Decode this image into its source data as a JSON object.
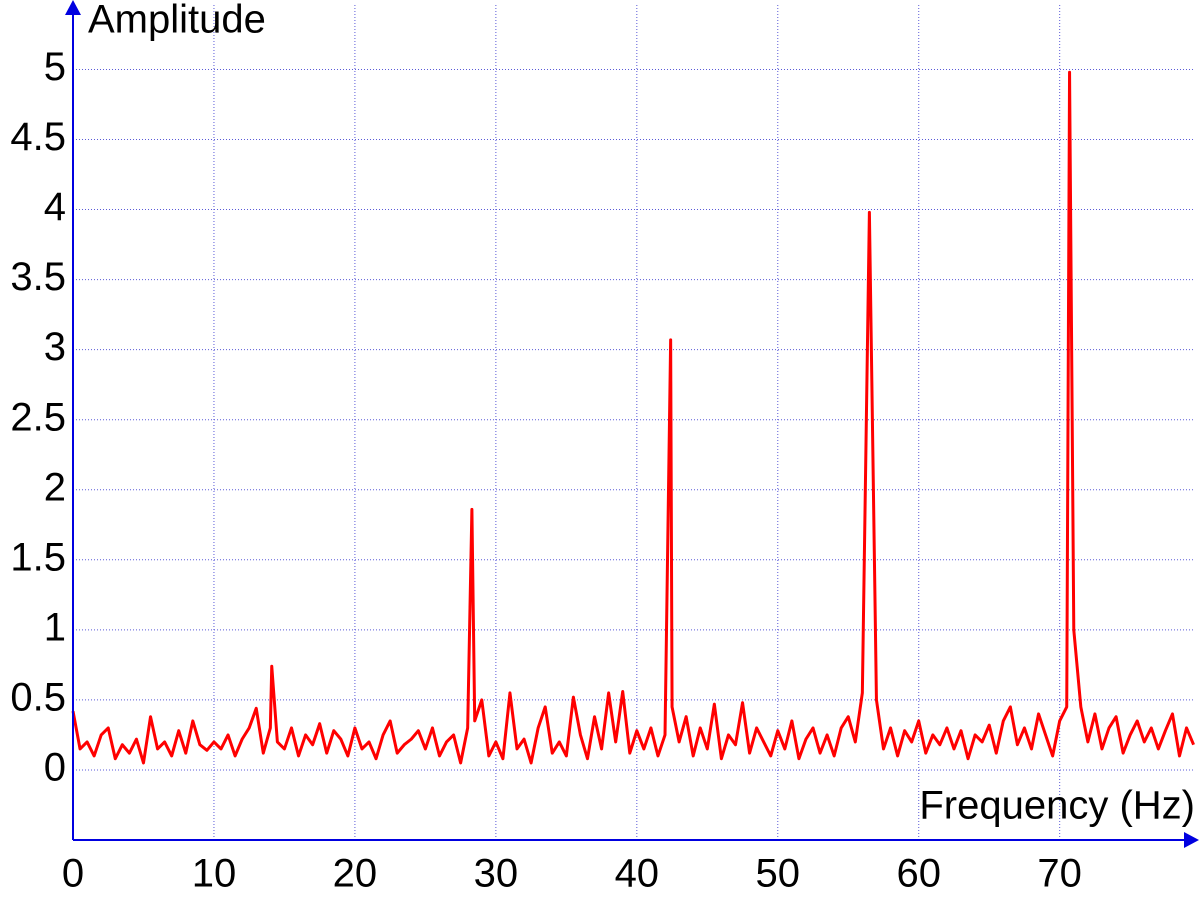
{
  "chart_data": {
    "type": "line",
    "y_label": "Amplitude",
    "x_label": "Frequency (Hz)",
    "xlim": [
      0,
      79.6
    ],
    "ylim": [
      -0.5,
      5.46
    ],
    "xticks": [
      0,
      10,
      20,
      30,
      40,
      50,
      60,
      70
    ],
    "yticks": [
      0,
      0.5,
      1,
      1.5,
      2,
      2.5,
      3,
      3.5,
      4,
      4.5,
      5
    ],
    "grid": true,
    "series": [
      {
        "color": "#ff0000",
        "x": [
          0,
          0.5,
          1,
          1.5,
          2,
          2.5,
          3,
          3.5,
          4,
          4.5,
          5,
          5.5,
          6,
          6.5,
          7,
          7.5,
          8,
          8.5,
          9,
          9.5,
          10,
          10.5,
          11,
          11.5,
          12,
          12.5,
          13,
          13.5,
          14,
          14.1,
          14.5,
          15,
          15.5,
          16,
          16.5,
          17,
          17.5,
          18,
          18.5,
          19,
          19.5,
          20,
          20.5,
          21,
          21.5,
          22,
          22.5,
          23,
          23.5,
          24,
          24.5,
          25,
          25.5,
          26,
          26.5,
          27,
          27.5,
          28,
          28.3,
          28.5,
          29,
          29.5,
          30,
          30.5,
          31,
          31.5,
          32,
          32.5,
          33,
          33.5,
          34,
          34.5,
          35,
          35.5,
          36,
          36.5,
          37,
          37.5,
          38,
          38.5,
          39,
          39.5,
          40,
          40.5,
          41,
          41.5,
          42,
          42.4,
          42.5,
          43,
          43.5,
          44,
          44.5,
          45,
          45.5,
          46,
          46.5,
          47,
          47.5,
          48,
          48.5,
          49,
          49.5,
          50,
          50.5,
          51,
          51.5,
          52,
          52.5,
          53,
          53.5,
          54,
          54.5,
          55,
          55.5,
          56,
          56.5,
          57,
          57.5,
          58,
          58.5,
          59,
          59.5,
          60,
          60.5,
          61,
          61.5,
          62,
          62.5,
          63,
          63.5,
          64,
          64.5,
          65,
          65.5,
          66,
          66.5,
          67,
          67.5,
          68,
          68.5,
          69,
          69.5,
          70,
          70.5,
          70.7,
          71,
          71.5,
          72,
          72.5,
          73,
          73.5,
          74,
          74.5,
          75,
          75.5,
          76,
          76.5,
          77,
          77.5,
          78,
          78.5,
          79,
          79.5
        ],
        "values": [
          0.42,
          0.15,
          0.2,
          0.1,
          0.25,
          0.3,
          0.08,
          0.18,
          0.12,
          0.22,
          0.05,
          0.38,
          0.15,
          0.2,
          0.1,
          0.28,
          0.12,
          0.35,
          0.18,
          0.14,
          0.2,
          0.15,
          0.25,
          0.1,
          0.22,
          0.3,
          0.44,
          0.12,
          0.3,
          0.74,
          0.2,
          0.15,
          0.3,
          0.1,
          0.25,
          0.18,
          0.33,
          0.12,
          0.28,
          0.22,
          0.1,
          0.3,
          0.15,
          0.2,
          0.08,
          0.25,
          0.35,
          0.12,
          0.18,
          0.22,
          0.28,
          0.15,
          0.3,
          0.1,
          0.2,
          0.25,
          0.05,
          0.3,
          1.86,
          0.35,
          0.5,
          0.1,
          0.2,
          0.08,
          0.55,
          0.15,
          0.22,
          0.05,
          0.3,
          0.45,
          0.12,
          0.2,
          0.1,
          0.52,
          0.25,
          0.08,
          0.38,
          0.15,
          0.55,
          0.2,
          0.56,
          0.12,
          0.28,
          0.15,
          0.3,
          0.1,
          0.25,
          3.07,
          0.45,
          0.2,
          0.38,
          0.1,
          0.3,
          0.15,
          0.47,
          0.08,
          0.25,
          0.18,
          0.48,
          0.12,
          0.3,
          0.2,
          0.1,
          0.28,
          0.15,
          0.35,
          0.08,
          0.22,
          0.3,
          0.12,
          0.25,
          0.1,
          0.3,
          0.38,
          0.2,
          0.55,
          3.98,
          0.5,
          0.15,
          0.3,
          0.1,
          0.28,
          0.2,
          0.35,
          0.12,
          0.25,
          0.18,
          0.3,
          0.15,
          0.28,
          0.08,
          0.25,
          0.2,
          0.32,
          0.12,
          0.35,
          0.45,
          0.18,
          0.3,
          0.15,
          0.4,
          0.25,
          0.1,
          0.35,
          0.45,
          4.98,
          1.0,
          0.45,
          0.2,
          0.4,
          0.15,
          0.3,
          0.38,
          0.12,
          0.25,
          0.35,
          0.2,
          0.3,
          0.15,
          0.28,
          0.4,
          0.1,
          0.3,
          0.18
        ]
      }
    ]
  }
}
